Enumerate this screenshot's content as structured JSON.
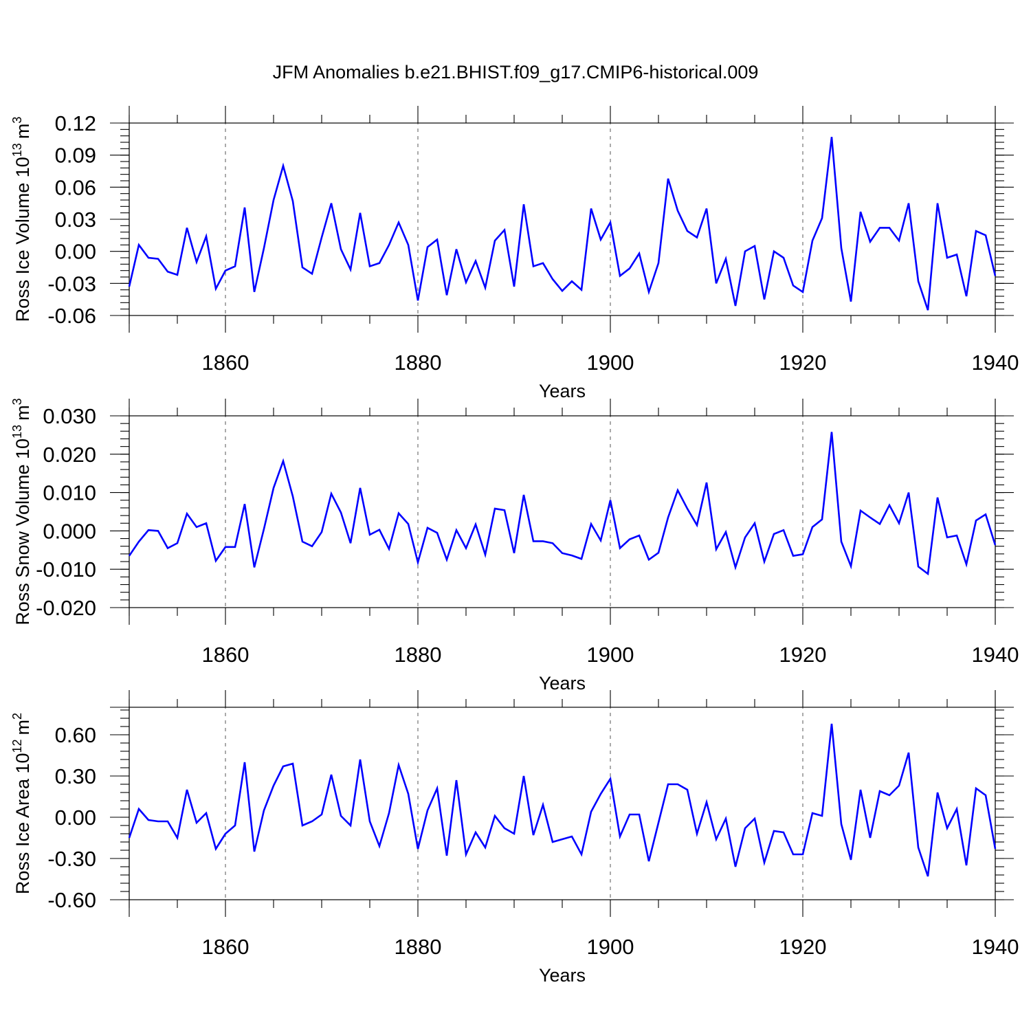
{
  "chart_data": [
    {
      "type": "line",
      "title": "JFM Anomalies b.e21.BHIST.f09_g17.CMIP6-historical.009",
      "xlabel": "Years",
      "ylabel": "Ross Ice Volume 10",
      "ylabel_sup_exp": "13",
      "ylabel_unit": "m",
      "ylabel_sup_unit": "3",
      "xlim": [
        1850,
        1940
      ],
      "ylim": [
        -0.06,
        0.12
      ],
      "xticks": [
        1860,
        1880,
        1900,
        1920,
        1940
      ],
      "xtick_labels": [
        "1860",
        "1880",
        "1900",
        "1920",
        "1940"
      ],
      "yticks": [
        -0.06,
        -0.03,
        0.0,
        0.03,
        0.06,
        0.09,
        0.12
      ],
      "ytick_labels": [
        "-0.06",
        "-0.03",
        "0.00",
        "0.03",
        "0.06",
        "0.09",
        "0.12"
      ],
      "grid_x": [
        1860,
        1880,
        1900,
        1920
      ],
      "color": "#0000ff",
      "x_start": 1850,
      "x_step": 1,
      "values": [
        -0.033,
        0.006,
        -0.006,
        -0.007,
        -0.019,
        -0.022,
        0.022,
        -0.01,
        0.014,
        -0.035,
        -0.018,
        -0.014,
        0.041,
        -0.038,
        0.003,
        0.048,
        0.08,
        0.047,
        -0.015,
        -0.021,
        0.013,
        0.045,
        0.002,
        -0.017,
        0.036,
        -0.014,
        -0.011,
        0.006,
        0.027,
        0.006,
        -0.046,
        0.004,
        0.011,
        -0.041,
        0.002,
        -0.029,
        -0.009,
        -0.034,
        0.01,
        0.02,
        -0.033,
        0.044,
        -0.014,
        -0.011,
        -0.026,
        -0.037,
        -0.028,
        -0.036,
        0.04,
        0.011,
        0.027,
        -0.023,
        -0.016,
        -0.002,
        -0.038,
        -0.011,
        0.068,
        0.038,
        0.019,
        0.013,
        0.04,
        -0.03,
        -0.007,
        -0.051,
        0.0,
        0.005,
        -0.045,
        0.0,
        -0.006,
        -0.032,
        -0.038,
        0.01,
        0.031,
        0.107,
        0.003,
        -0.047,
        0.037,
        0.009,
        0.022,
        0.022,
        0.01,
        0.045,
        -0.028,
        -0.055,
        0.045,
        -0.006,
        -0.003,
        -0.042,
        0.019,
        0.015,
        -0.023
      ]
    },
    {
      "type": "line",
      "title": "",
      "xlabel": "Years",
      "ylabel": "Ross Snow Volume 10",
      "ylabel_sup_exp": "13",
      "ylabel_unit": "m",
      "ylabel_sup_unit": "3",
      "xlim": [
        1850,
        1940
      ],
      "ylim": [
        -0.02,
        0.03
      ],
      "xticks": [
        1860,
        1880,
        1900,
        1920,
        1940
      ],
      "xtick_labels": [
        "1860",
        "1880",
        "1900",
        "1920",
        "1940"
      ],
      "yticks": [
        -0.02,
        -0.01,
        0.0,
        0.01,
        0.02,
        0.03
      ],
      "ytick_labels": [
        "-0.020",
        "-0.010",
        "0.000",
        "0.010",
        "0.020",
        "0.030"
      ],
      "grid_x": [
        1860,
        1880,
        1900,
        1920
      ],
      "color": "#0000ff",
      "x_start": 1850,
      "x_step": 1,
      "values": [
        -0.0065,
        -0.0028,
        0.0002,
        0.0,
        -0.0045,
        -0.0032,
        0.0045,
        0.001,
        0.002,
        -0.0078,
        -0.0042,
        -0.0042,
        0.007,
        -0.0095,
        0.0005,
        0.0112,
        0.0182,
        0.009,
        -0.0028,
        -0.004,
        -0.0003,
        0.0097,
        0.0048,
        -0.0032,
        0.0112,
        -0.001,
        0.0003,
        -0.0047,
        0.0046,
        0.0018,
        -0.0082,
        0.0008,
        -0.0005,
        -0.0075,
        0.0002,
        -0.0045,
        0.0017,
        -0.0062,
        0.0058,
        0.0054,
        -0.0058,
        0.0094,
        -0.0027,
        -0.0027,
        -0.0032,
        -0.0058,
        -0.0064,
        -0.0073,
        0.0018,
        -0.0025,
        0.008,
        -0.0045,
        -0.0022,
        -0.0012,
        -0.0075,
        -0.0057,
        0.0035,
        0.0106,
        0.0058,
        0.0015,
        0.0126,
        -0.0048,
        -0.0003,
        -0.0095,
        -0.0017,
        0.002,
        -0.008,
        -0.0008,
        0.0002,
        -0.0065,
        -0.0061,
        0.001,
        0.003,
        0.0258,
        -0.0028,
        -0.0092,
        0.0053,
        0.0035,
        0.0018,
        0.0067,
        0.002,
        0.01,
        -0.0093,
        -0.0112,
        0.0087,
        -0.0017,
        -0.0012,
        -0.0087,
        0.0027,
        0.0043,
        -0.0037
      ]
    },
    {
      "type": "line",
      "title": "",
      "xlabel": "Years",
      "ylabel": "Ross Ice Area 10",
      "ylabel_sup_exp": "12",
      "ylabel_unit": "m",
      "ylabel_sup_unit": "2",
      "xlim": [
        1850,
        1940
      ],
      "ylim": [
        -0.6,
        0.8
      ],
      "xticks": [
        1860,
        1880,
        1900,
        1920,
        1940
      ],
      "xtick_labels": [
        "1860",
        "1880",
        "1900",
        "1920",
        "1940"
      ],
      "yticks": [
        -0.6,
        -0.3,
        0.0,
        0.3,
        0.6
      ],
      "ytick_labels": [
        "-0.60",
        "-0.30",
        "0.00",
        "0.30",
        "0.60"
      ],
      "grid_x": [
        1860,
        1880,
        1900,
        1920
      ],
      "color": "#0000ff",
      "x_start": 1850,
      "x_step": 1,
      "values": [
        -0.15,
        0.06,
        -0.02,
        -0.03,
        -0.03,
        -0.15,
        0.2,
        -0.04,
        0.03,
        -0.23,
        -0.12,
        -0.06,
        0.4,
        -0.25,
        0.05,
        0.23,
        0.37,
        0.39,
        -0.06,
        -0.03,
        0.02,
        0.31,
        0.01,
        -0.06,
        0.42,
        -0.03,
        -0.21,
        0.03,
        0.38,
        0.17,
        -0.23,
        0.05,
        0.21,
        -0.28,
        0.27,
        -0.27,
        -0.11,
        -0.22,
        0.01,
        -0.08,
        -0.12,
        0.3,
        -0.13,
        0.09,
        -0.18,
        -0.16,
        -0.14,
        -0.27,
        0.04,
        0.17,
        0.28,
        -0.14,
        0.02,
        0.02,
        -0.32,
        -0.04,
        0.24,
        0.24,
        0.2,
        -0.12,
        0.11,
        -0.16,
        -0.01,
        -0.36,
        -0.08,
        -0.01,
        -0.33,
        -0.1,
        -0.11,
        -0.27,
        -0.27,
        0.03,
        0.01,
        0.68,
        -0.05,
        -0.31,
        0.2,
        -0.15,
        0.19,
        0.16,
        0.23,
        0.47,
        -0.22,
        -0.43,
        0.18,
        -0.08,
        0.06,
        -0.35,
        0.21,
        0.16,
        -0.23
      ]
    }
  ]
}
